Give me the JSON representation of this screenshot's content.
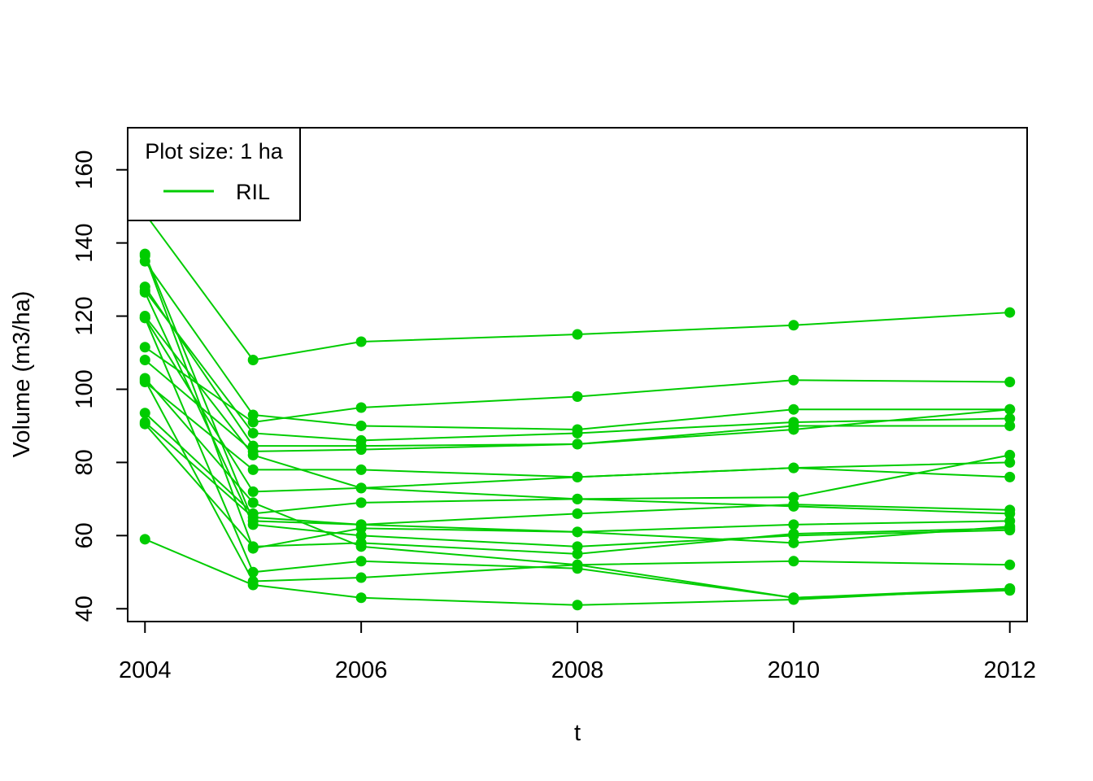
{
  "chart_data": {
    "type": "line",
    "title": "",
    "xlabel": "t",
    "ylabel": "Volume (m3/ha)",
    "xlim": [
      2003.84,
      2012.16
    ],
    "ylim": [
      36.5,
      171.5
    ],
    "x_ticks": [
      "2004",
      "2006",
      "2008",
      "2010",
      "2012"
    ],
    "y_ticks": [
      "40",
      "60",
      "80",
      "100",
      "120",
      "140",
      "160"
    ],
    "grid": false,
    "legend": {
      "position": "top-left",
      "title": "Plot size: 1 ha",
      "entries": [
        {
          "label": "RIL",
          "color": "#00CC00"
        }
      ]
    },
    "series_color": "#00CC00",
    "x": [
      2004,
      2005,
      2006,
      2008,
      2010,
      2012
    ],
    "series": [
      {
        "values": [
          148,
          108,
          113,
          115,
          117.5,
          121
        ]
      },
      {
        "values": [
          111.5,
          91,
          95,
          98,
          102.5,
          102
        ]
      },
      {
        "values": [
          135,
          93,
          90,
          89,
          94.5,
          94.5
        ]
      },
      {
        "values": [
          127,
          88,
          86,
          88,
          91,
          92
        ]
      },
      {
        "values": [
          128,
          84.5,
          84.5,
          85,
          90,
          90
        ]
      },
      {
        "values": [
          108,
          83,
          83.5,
          85,
          89,
          94.5
        ]
      },
      {
        "values": [
          120,
          82,
          73,
          70,
          70.5,
          82
        ]
      },
      {
        "values": [
          102,
          78,
          78,
          76,
          78.5,
          76
        ]
      },
      {
        "values": [
          119.5,
          72,
          73,
          76,
          78.5,
          80
        ]
      },
      {
        "values": [
          103,
          69,
          57,
          52,
          53,
          52
        ]
      },
      {
        "values": [
          93.5,
          66,
          69,
          70,
          68,
          66
        ]
      },
      {
        "values": [
          91,
          65,
          63,
          66,
          68.5,
          67
        ]
      },
      {
        "values": [
          137,
          64,
          63,
          61,
          63,
          64
        ]
      },
      {
        "values": [
          126.5,
          63,
          60,
          57,
          60,
          61.5
        ]
      },
      {
        "values": [
          90.5,
          57,
          58,
          55,
          60.5,
          62
        ]
      },
      {
        "values": [
          136.5,
          56.5,
          62,
          61,
          58,
          62.5
        ]
      },
      {
        "values": [
          119.5,
          50,
          53,
          51,
          43,
          45.5
        ]
      },
      {
        "values": [
          102.5,
          47.5,
          48.5,
          52,
          43,
          45
        ]
      },
      {
        "values": [
          59,
          46.5,
          43,
          41,
          42.5,
          45.5
        ]
      }
    ]
  }
}
